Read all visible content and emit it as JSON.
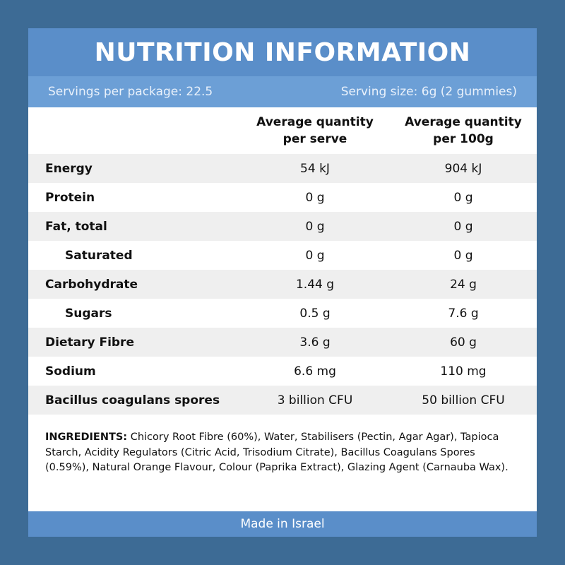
{
  "title": "NUTRITION INFORMATION",
  "servings_per_package": "Servings per package: 22.5",
  "serving_size": "Serving size: 6g (2 gummies)",
  "columns": {
    "per_serve": "Average quantity\nper serve",
    "per_100g": "Average quantity\nper 100g"
  },
  "rows": [
    {
      "name": "Energy",
      "per_serve": "54 kJ",
      "per_100g": "904 kJ",
      "indent": false
    },
    {
      "name": "Protein",
      "per_serve": "0 g",
      "per_100g": "0 g",
      "indent": false
    },
    {
      "name": "Fat, total",
      "per_serve": "0 g",
      "per_100g": "0 g",
      "indent": false
    },
    {
      "name": "Saturated",
      "per_serve": "0 g",
      "per_100g": "0 g",
      "indent": true
    },
    {
      "name": "Carbohydrate",
      "per_serve": "1.44 g",
      "per_100g": "24 g",
      "indent": false
    },
    {
      "name": "Sugars",
      "per_serve": "0.5 g",
      "per_100g": "7.6 g",
      "indent": true
    },
    {
      "name": "Dietary Fibre",
      "per_serve": "3.6 g",
      "per_100g": "60 g",
      "indent": false
    },
    {
      "name": "Sodium",
      "per_serve": "6.6 mg",
      "per_100g": "110 mg",
      "indent": false
    },
    {
      "name": "Bacillus coagulans spores",
      "per_serve": "3 billion CFU",
      "per_100g": "50 billion CFU",
      "indent": false
    }
  ],
  "ingredients": {
    "label": "INGREDIENTS:",
    "text": " Chicory Root Fibre (60%), Water, Stabilisers (Pectin, Agar Agar), Tapioca Starch, Acidity Regulators (Citric Acid, Trisodium Citrate), Bacillus Coagulans Spores (0.59%), Natural Orange Flavour, Colour (Paprika Extract), Glazing Agent (Carnauba Wax)."
  },
  "footer": "Made in Israel",
  "colors": {
    "background": "#3d6b95",
    "title_bar": "#5a8ec9",
    "sub_bar": "#6c9fd6",
    "row_shade": "#efefef"
  }
}
